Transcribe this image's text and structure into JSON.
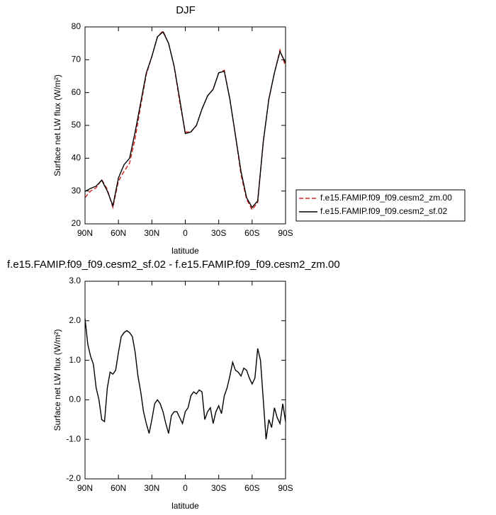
{
  "chart_data": [
    {
      "type": "line",
      "title": "DJF",
      "ylabel": "Surface net LW flux (W/m²)",
      "xlabel": "latitude",
      "x": [
        90,
        85,
        80,
        75,
        70,
        65,
        60,
        55,
        50,
        45,
        40,
        35,
        30,
        25,
        20,
        15,
        10,
        5,
        0,
        -5,
        -10,
        -15,
        -20,
        -25,
        -30,
        -35,
        -40,
        -45,
        -50,
        -55,
        -60,
        -65,
        -70,
        -75,
        -80,
        -85,
        -90
      ],
      "series": [
        {
          "name": "f.e15.FAMIP.f09_f09.cesm2_zm.00",
          "color": "#d62020",
          "dash": true,
          "values": [
            28,
            30,
            31,
            33.5,
            30.5,
            25,
            33,
            36,
            38.5,
            46,
            56,
            65.5,
            71,
            77,
            78.8,
            75,
            68,
            57,
            48,
            48,
            50,
            55,
            59,
            61,
            66,
            66.8,
            58,
            47,
            35,
            27.5,
            24.3,
            26.5,
            45,
            58,
            66,
            73,
            68
          ]
        },
        {
          "name": "f.e15.FAMIP.f09_f09.cesm2_sf.02",
          "color": "#000000",
          "dash": false,
          "values": [
            29.9,
            30.8,
            31.5,
            33.3,
            30,
            25.5,
            34,
            38,
            40,
            48,
            57,
            66,
            71,
            77,
            78.5,
            75,
            68,
            58,
            47.5,
            48,
            50,
            55,
            59,
            61,
            66,
            66.5,
            58,
            47,
            36,
            28,
            25,
            27,
            45,
            58,
            66,
            72.5,
            69
          ]
        }
      ],
      "xlim": [
        90,
        -90
      ],
      "xticks": [
        {
          "value": 90,
          "label": "90N"
        },
        {
          "value": 60,
          "label": "60N"
        },
        {
          "value": 30,
          "label": "30N"
        },
        0,
        {
          "value": -30,
          "label": "30S"
        },
        {
          "value": -60,
          "label": "60S"
        },
        {
          "value": -90,
          "label": "90S"
        }
      ],
      "ylim": [
        20,
        80
      ],
      "yticks": [
        20,
        30,
        40,
        50,
        60,
        70,
        80
      ],
      "legend": "right"
    },
    {
      "type": "line",
      "title": "f.e15.FAMIP.f09_f09.cesm2_sf.02 - f.e15.FAMIP.f09_f09.cesm2_zm.00",
      "ylabel": "Surface net LW flux (W/m²)",
      "xlabel": "latitude",
      "x": [
        90,
        87.5,
        85,
        82.5,
        80,
        77.5,
        75,
        72.5,
        70,
        67.5,
        65,
        62.5,
        60,
        57.5,
        55,
        52.5,
        50,
        47.5,
        45,
        42.5,
        40,
        37.5,
        35,
        32.5,
        30,
        27.5,
        25,
        22.5,
        20,
        17.5,
        15,
        12.5,
        10,
        7.5,
        5,
        2.5,
        0,
        -2.5,
        -5,
        -7.5,
        -10,
        -12.5,
        -15,
        -17.5,
        -20,
        -22.5,
        -25,
        -27.5,
        -30,
        -32.5,
        -35,
        -37.5,
        -40,
        -42.5,
        -45,
        -47.5,
        -50,
        -52.5,
        -55,
        -57.5,
        -60,
        -62.5,
        -65,
        -67.5,
        -70,
        -72.5,
        -75,
        -77.5,
        -80,
        -82.5,
        -85,
        -87.5,
        -90
      ],
      "series": [
        {
          "color": "#000000",
          "dash": false,
          "values": [
            2.05,
            1.4,
            1.1,
            0.9,
            0.3,
            0.0,
            -0.5,
            -0.55,
            0.3,
            0.7,
            0.65,
            0.75,
            1.2,
            1.6,
            1.7,
            1.75,
            1.7,
            1.6,
            1.2,
            0.6,
            0.2,
            -0.3,
            -0.6,
            -0.85,
            -0.5,
            -0.1,
            0.0,
            -0.1,
            -0.3,
            -0.6,
            -0.85,
            -0.4,
            -0.3,
            -0.3,
            -0.45,
            -0.6,
            -0.3,
            -0.2,
            0.1,
            0.2,
            0.15,
            0.25,
            0.2,
            -0.5,
            -0.3,
            -0.2,
            -0.6,
            -0.3,
            -0.15,
            -0.35,
            0.1,
            0.3,
            0.6,
            0.95,
            0.75,
            0.7,
            0.6,
            0.8,
            0.75,
            0.55,
            0.4,
            0.55,
            1.3,
            1.0,
            0.0,
            -1.0,
            -0.5,
            -0.7,
            -0.2,
            -0.45,
            -0.6,
            -0.1,
            -0.55
          ]
        }
      ],
      "xlim": [
        90,
        -90
      ],
      "xticks": [
        {
          "value": 90,
          "label": "90N"
        },
        {
          "value": 60,
          "label": "60N"
        },
        {
          "value": 30,
          "label": "30N"
        },
        0,
        {
          "value": -30,
          "label": "30S"
        },
        {
          "value": -60,
          "label": "60S"
        },
        {
          "value": -90,
          "label": "90S"
        }
      ],
      "ylim": [
        -2,
        3
      ],
      "yticks": [
        {
          "value": -2,
          "label": "-2.0"
        },
        {
          "value": -1,
          "label": "-1.0"
        },
        {
          "value": 0,
          "label": "0.0"
        },
        {
          "value": 1,
          "label": "1.0"
        },
        {
          "value": 2,
          "label": "2.0"
        },
        {
          "value": 3,
          "label": "3.0"
        }
      ]
    }
  ]
}
